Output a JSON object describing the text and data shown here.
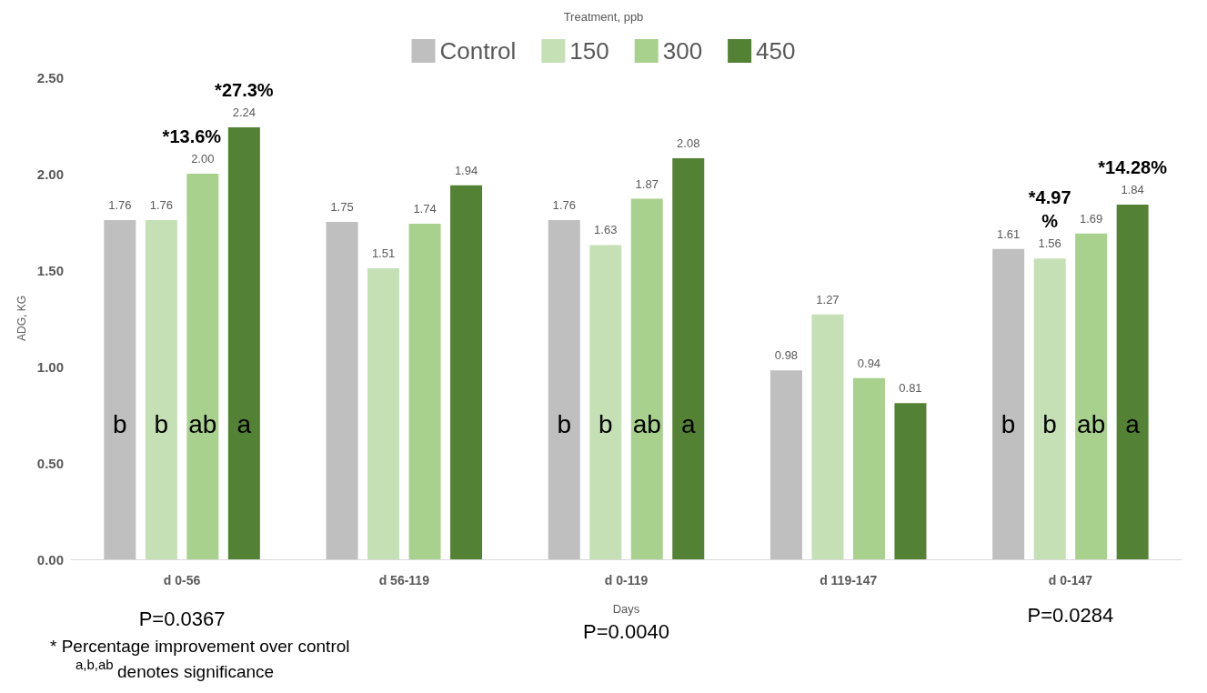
{
  "chart_data": {
    "type": "bar",
    "legend_title": "Treatment, ppb",
    "xlabel": "Days",
    "ylabel": "ADG, KG",
    "categories": [
      "d 0-56",
      "d 56-119",
      "d 0-119",
      "d 119-147",
      "d 0-147"
    ],
    "series": [
      {
        "name": "Control",
        "color": "#bfbfbf",
        "values": [
          1.76,
          1.75,
          1.76,
          0.98,
          1.61
        ],
        "value_labels": [
          "1.76",
          "1.75",
          "1.76",
          "0.98",
          "1.61"
        ]
      },
      {
        "name": "150",
        "color": "#c5e0b4",
        "values": [
          1.76,
          1.51,
          1.63,
          1.27,
          1.56
        ],
        "value_labels": [
          "1.76",
          "1.51",
          "1.63",
          "1.27",
          "1.56"
        ]
      },
      {
        "name": "300",
        "color": "#a9d18e",
        "values": [
          2.0,
          1.74,
          1.87,
          0.94,
          1.69
        ],
        "value_labels": [
          "2.00",
          "1.74",
          "1.87",
          "0.94",
          "1.69"
        ]
      },
      {
        "name": "450",
        "color": "#548235",
        "values": [
          2.24,
          1.94,
          2.08,
          0.81,
          1.84
        ],
        "value_labels": [
          "2.24",
          "1.94",
          "2.08",
          "0.81",
          "1.84"
        ]
      }
    ],
    "ylim": [
      0,
      2.5
    ],
    "yticks": [
      {
        "value": 0,
        "label": "0.00"
      },
      {
        "value": 0.5,
        "label": "0.50"
      },
      {
        "value": 1,
        "label": "1.00"
      },
      {
        "value": 1.5,
        "label": "1.50"
      },
      {
        "value": 2,
        "label": "2.00"
      },
      {
        "value": 2.5,
        "label": "2.50"
      }
    ],
    "grid": false,
    "legend": "top",
    "annotations": [
      "*13.6%",
      "*27.3%",
      "*4.97%",
      "*14.28%",
      "b",
      "b",
      "ab",
      "a",
      "b",
      "b",
      "ab",
      "a",
      "b",
      "b",
      "ab",
      "a",
      "P=0.0367",
      "P=0.0040",
      "P=0.0284",
      "* Percentage improvement over control",
      "$^{a,b,ab}$ denotes significance"
    ]
  }
}
